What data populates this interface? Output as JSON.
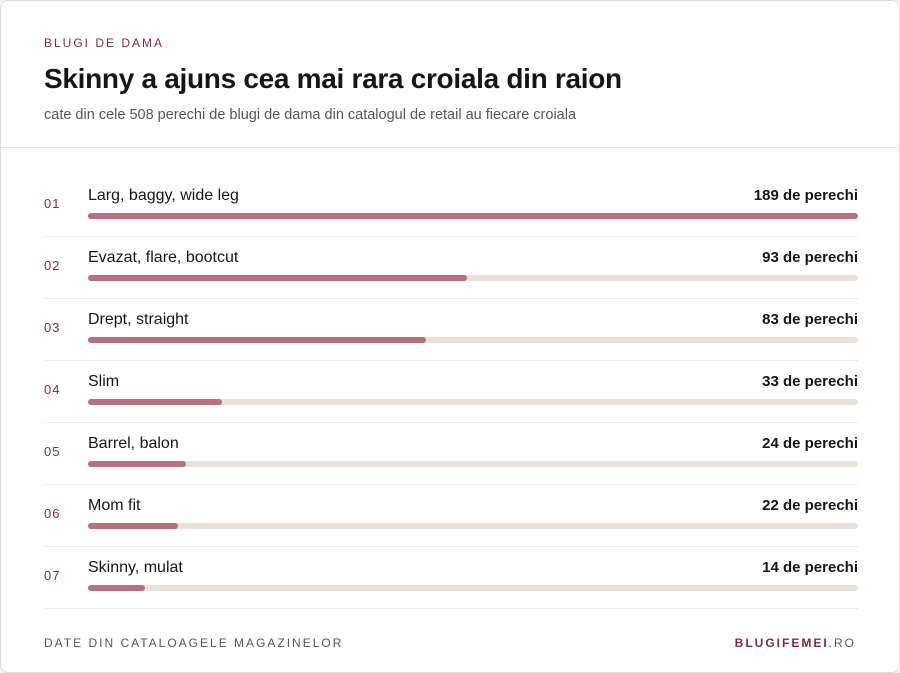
{
  "chart_data": {
    "type": "bar",
    "orientation": "horizontal",
    "eyebrow": "BLUGI DE DAMA",
    "title": "Skinny a ajuns cea mai rara croiala din raion",
    "subtitle": "cate din cele 508 perechi de blugi de dama din catalogul de retail au fiecare croiala",
    "ranks": [
      "01",
      "02",
      "03",
      "04",
      "05",
      "06",
      "07"
    ],
    "categories": [
      "Larg, baggy, wide leg",
      "Evazat, flare, bootcut",
      "Drept, straight",
      "Slim",
      "Barrel, balon",
      "Mom fit",
      "Skinny, mulat"
    ],
    "values": [
      189,
      93,
      83,
      33,
      24,
      22,
      14
    ],
    "value_labels": [
      "189 de perechi",
      "93 de perechi",
      "83 de perechi",
      "33 de perechi",
      "24 de perechi",
      "22 de perechi",
      "14 de perechi"
    ],
    "xlim": [
      0,
      189
    ],
    "color": "#b8707f",
    "track_color": "#e9e1da",
    "footer_left": "DATE DIN CATALOAGELE MAGAZINELOR",
    "footer_brand": "BLUGIFEMEI",
    "footer_brand_suffix": ".RO"
  }
}
